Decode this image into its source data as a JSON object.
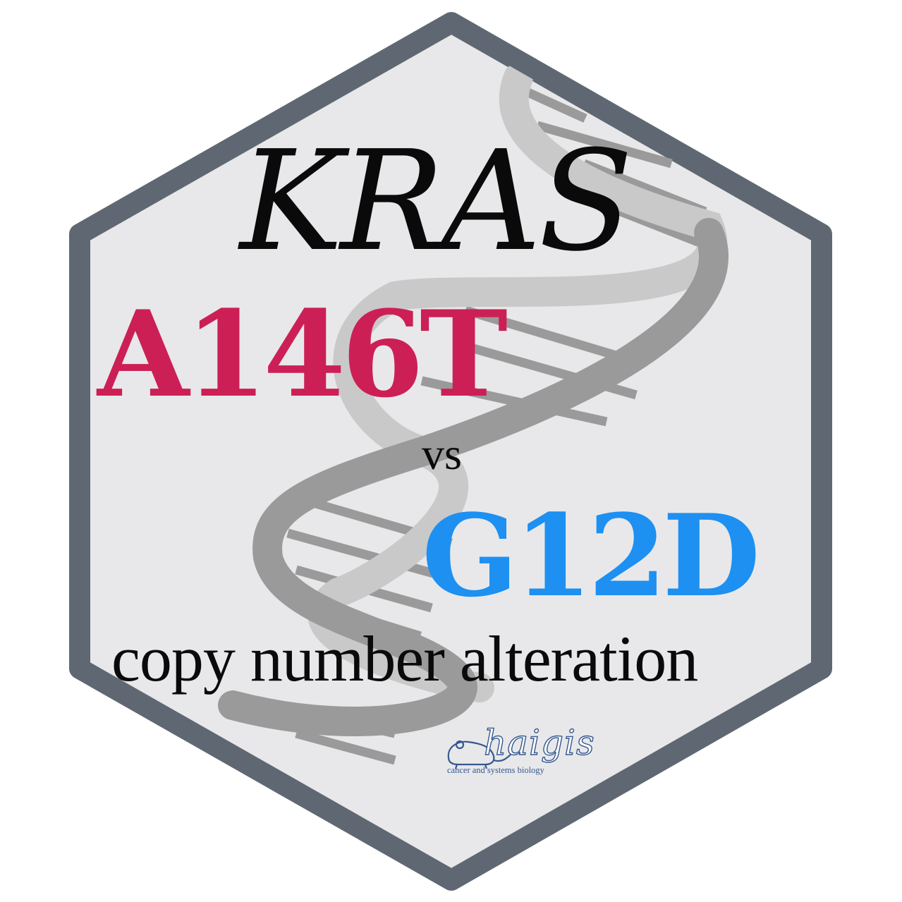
{
  "colors": {
    "border": "#5f6872",
    "background": "#e8e8ea",
    "helix_light": "#c9c9c9",
    "helix_dark": "#9a9a9a",
    "title": "#0a0a0a",
    "mutation_a": "#cc1f56",
    "mutation_b": "#1d90f2",
    "logo": "#35588f"
  },
  "icons": {
    "background": "dna-double-helix-icon",
    "logo": "mouse-icon"
  },
  "sticker": {
    "gene": "KRAS",
    "mutation_a": "A146T",
    "comparison": "vs",
    "mutation_b": "G12D",
    "subtitle": "copy number alteration",
    "lab_name": "haigis",
    "lab_tagline": "cancer and systems biology"
  }
}
